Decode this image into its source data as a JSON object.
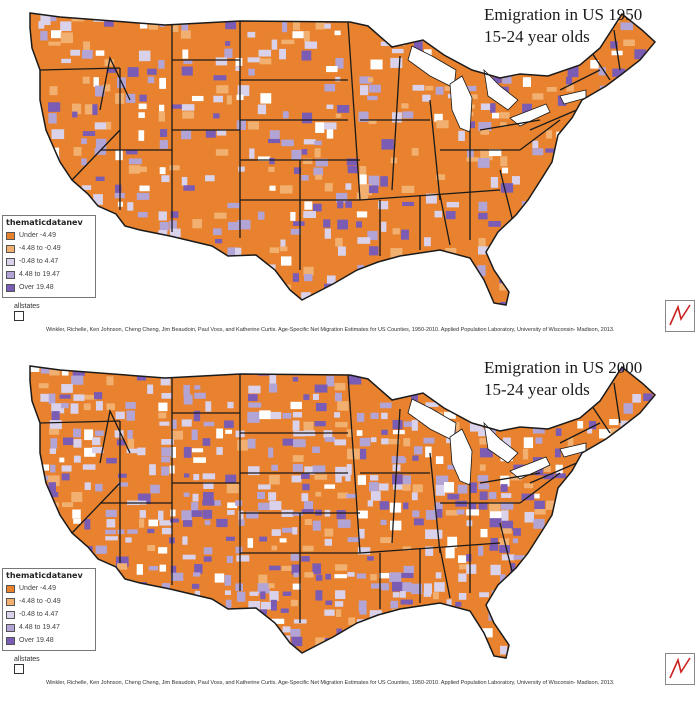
{
  "colors": {
    "orange": "#e8822e",
    "light_orange": "#f2b070",
    "pale_lavender": "#d9d2ea",
    "light_purple": "#b3a4d6",
    "purple": "#7b5cb4",
    "white": "#ffffff",
    "border": "#1a1a1a"
  },
  "legend_title": "thematicdatanev",
  "legend_items": [
    {
      "label": "Under -4.49",
      "color": "#e8822e"
    },
    {
      "label": "-4.48 to -0.49",
      "color": "#f2b070"
    },
    {
      "label": "-0.48 to 4.47",
      "color": "#d9d2ea"
    },
    {
      "label": "4.48 to 19.47",
      "color": "#b3a4d6"
    },
    {
      "label": "Over 19.48",
      "color": "#7b5cb4"
    }
  ],
  "layer_label": "allstates",
  "citation": "Winkler, Richelle, Ken Johnson, Cheng Cheng, Jim Beaudoin, Paul Voss, and Katherine Curtis. Age-Specific Net Migration Estimates for US Counties, 1950-2010. Applied Population Laboratory, University of Wisconsin- Madison, 2013.",
  "maps": [
    {
      "title_line1": "Emigration in US 1950",
      "title_line2": "15-24 year olds",
      "purple_share": 0.18,
      "white_share": 0.03
    },
    {
      "title_line1": "Emigration in US 2000",
      "title_line2": "15-24 year olds",
      "purple_share": 0.32,
      "white_share": 0.04
    }
  ]
}
